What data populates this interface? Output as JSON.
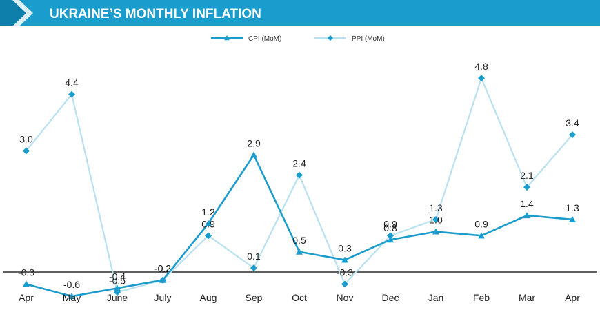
{
  "chart_data": {
    "type": "line",
    "title": "UKRAINE’S MONTHLY INFLATION",
    "categories": [
      "Apr",
      "May",
      "June",
      "July",
      "Aug",
      "Sep",
      "Oct",
      "Nov",
      "Dec",
      "Jan",
      "Feb",
      "Mar",
      "Apr"
    ],
    "series": [
      {
        "name": "CPI (MoM)",
        "color": "#1a9ccc",
        "marker": "triangle",
        "values": [
          -0.3,
          -0.6,
          -0.4,
          -0.2,
          1.2,
          2.9,
          0.5,
          0.3,
          0.8,
          1.0,
          0.9,
          1.4,
          1.3
        ],
        "labels": [
          "-0.3",
          "-0.6",
          "-0.4",
          "-0.2",
          "1.2",
          "2.9",
          "0.5",
          "0.3",
          "0.8",
          "1.0",
          "0.9",
          "1.4",
          "1.3"
        ]
      },
      {
        "name": "PPI (MoM)",
        "color": "#b9e1f0",
        "marker_color": "#1a9ccc",
        "marker": "diamond",
        "values": [
          3.0,
          4.4,
          -0.5,
          -0.2,
          0.9,
          0.1,
          2.4,
          -0.3,
          0.9,
          1.3,
          4.8,
          2.1,
          3.4
        ],
        "labels": [
          "3.0",
          "4.4",
          "-0.5",
          "-0.2",
          "0.9",
          "0.1",
          "2.4",
          "-0.3",
          "0.9",
          "1.3",
          "4.8",
          "2.1",
          "3.4"
        ]
      }
    ],
    "ylim": [
      -0.8,
      5.5
    ],
    "legend_position": "top-center",
    "grid": false,
    "zero_line": true,
    "banner_color": "#1a9ccc"
  }
}
